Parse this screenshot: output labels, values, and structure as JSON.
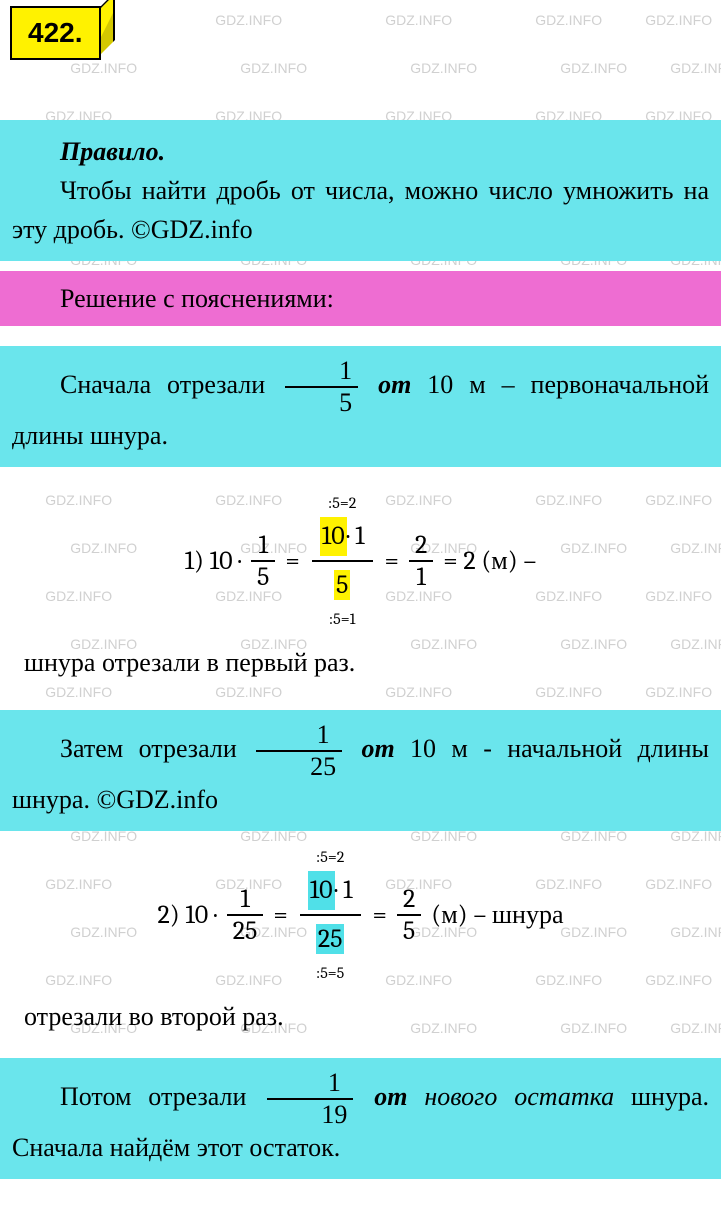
{
  "badge": "422.",
  "watermark_text": "GDZ.INFO",
  "rule": {
    "title": "Правило.",
    "text": "Чтобы найти дробь от числа, можно число умножить на эту дробь. ©GDZ.info"
  },
  "solution_header": "Решение с пояснениями:",
  "step1": {
    "pre": "Сначала отрезали",
    "frac_num": "1",
    "frac_den": "5",
    "ot": "от",
    "rest": "10 м – первоначальной длины шнура."
  },
  "calc1": {
    "label": "1) 10 ·",
    "f1_num": "1",
    "f1_den": "5",
    "eq": "=",
    "anno_top": ":5=2",
    "mid_num_hl": "10",
    "mid_num_dot": " · 1",
    "mid_den_hl": "5",
    "anno_bot": ":5=1",
    "f2_num": "2",
    "f2_den": "1",
    "result": "= 2 (м) –",
    "explain": "шнура отрезали в первый раз."
  },
  "step2": {
    "pre": "Затем отрезали",
    "frac_num": "1",
    "frac_den": "25",
    "ot": "от",
    "rest": "10 м - начальной длины шнура. ©GDZ.info"
  },
  "calc2": {
    "label": "2) 10 ·",
    "f1_num": "1",
    "f1_den": "25",
    "eq": "=",
    "anno_top": ":5=2",
    "mid_num_hl": "10",
    "mid_num_dot": " · 1",
    "mid_den_hl": "25",
    "anno_bot": ":5=5",
    "f2_num": "2",
    "f2_den": "5",
    "result": " (м) – шнура",
    "explain": "отрезали во второй раз."
  },
  "step3": {
    "pre": "Потом отрезали",
    "frac_num": "1",
    "frac_den": "19",
    "ot": "от",
    "rest1": "нового остатка",
    "rest2": " шнура. Сначала найдём этот остаток."
  },
  "colors": {
    "cyan": "#6ae5ec",
    "pink": "#ee6dd2",
    "yellow": "#fff200",
    "hl_cyan": "#50e0e8",
    "watermark": "#d0d0d0"
  }
}
